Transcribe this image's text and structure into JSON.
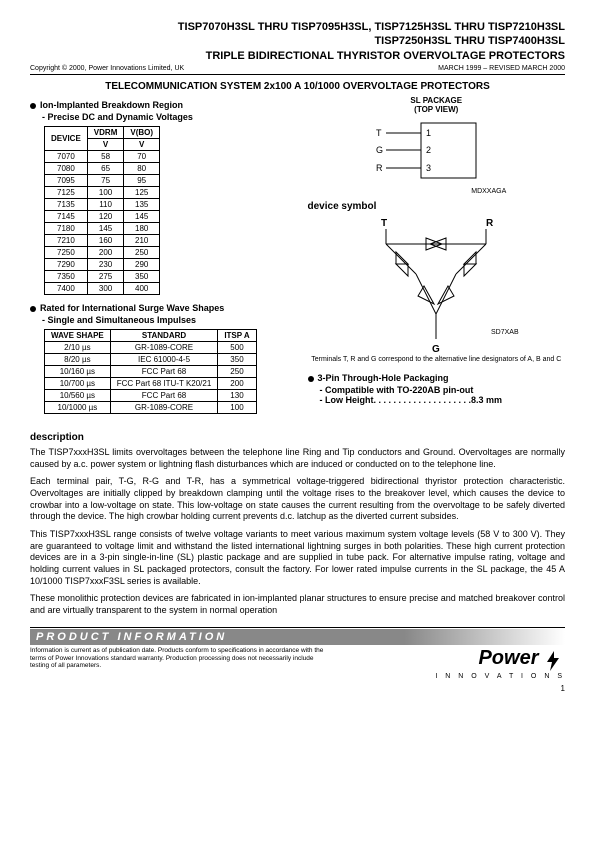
{
  "header": {
    "line1": "TISP7070H3SL THRU TISP7095H3SL, TISP7125H3SL THRU TISP7210H3SL",
    "line2": "TISP7250H3SL THRU TISP7400H3SL",
    "line3": "TRIPLE BIDIRECTIONAL THYRISTOR OVERVOLTAGE PROTECTORS",
    "copyright": "Copyright © 2000, Power Innovations Limited, UK",
    "date": "MARCH 1999 – REVISED MARCH 2000"
  },
  "section_title": "TELECOMMUNICATION SYSTEM 2x100 A 10/1000 OVERVOLTAGE PROTECTORS",
  "bullet1": {
    "title": "Ion-Implanted Breakdown Region",
    "sub": "- Precise DC and Dynamic Voltages"
  },
  "device_table": {
    "headers": [
      "DEVICE",
      "VDRM",
      "V(BO)"
    ],
    "unit_row": [
      "",
      "V",
      "V"
    ],
    "rows": [
      [
        "7070",
        "58",
        "70"
      ],
      [
        "7080",
        "65",
        "80"
      ],
      [
        "7095",
        "75",
        "95"
      ],
      [
        "7125",
        "100",
        "125"
      ],
      [
        "7135",
        "110",
        "135"
      ],
      [
        "7145",
        "120",
        "145"
      ],
      [
        "7180",
        "145",
        "180"
      ],
      [
        "7210",
        "160",
        "210"
      ],
      [
        "7250",
        "200",
        "250"
      ],
      [
        "7290",
        "230",
        "290"
      ],
      [
        "7350",
        "275",
        "350"
      ],
      [
        "7400",
        "300",
        "400"
      ]
    ]
  },
  "bullet2": {
    "title": "Rated for International Surge Wave Shapes",
    "sub": "- Single and Simultaneous Impulses"
  },
  "wave_table": {
    "headers": [
      "WAVE SHAPE",
      "STANDARD",
      "ITSP A"
    ],
    "rows": [
      [
        "2/10 µs",
        "GR-1089-CORE",
        "500"
      ],
      [
        "8/20 µs",
        "IEC 61000-4-5",
        "350"
      ],
      [
        "10/160 µs",
        "FCC Part 68",
        "250"
      ],
      [
        "10/700 µs",
        "FCC Part 68 ITU-T K20/21",
        "200"
      ],
      [
        "10/560 µs",
        "FCC Part 68",
        "130"
      ],
      [
        "10/1000 µs",
        "GR-1089-CORE",
        "100"
      ]
    ]
  },
  "package": {
    "title1": "SL PACKAGE",
    "title2": "(TOP VIEW)",
    "pins": {
      "T": "T",
      "G": "G",
      "R": "R"
    },
    "pin_nums": [
      "1",
      "2",
      "3"
    ],
    "code": "MDXXAGA"
  },
  "device_symbol": {
    "label": "device symbol",
    "T": "T",
    "R": "R",
    "G": "G",
    "code": "SD7XAB",
    "note": "Terminals T, R and G correspond to the alternative line designators of A, B and C"
  },
  "bullet3": {
    "title": "3-Pin Through-Hole Packaging",
    "line1": "- Compatible with TO-220AB pin-out",
    "line2_prefix": "- Low Height",
    "line2_suffix": "8.3 mm"
  },
  "description": {
    "head": "description",
    "p1": "The TISP7xxxH3SL limits overvoltages between the telephone line Ring and Tip conductors and Ground. Overvoltages are normally caused by a.c. power system or lightning flash disturbances which are induced or conducted on to the telephone line.",
    "p2": "Each terminal pair, T-G, R-G and T-R, has a symmetrical voltage-triggered bidirectional thyristor protection characteristic. Overvoltages are initially clipped by breakdown clamping until the voltage rises to the breakover level, which causes the device to crowbar into a low-voltage on state. This low-voltage on state causes the current resulting from the overvoltage to be safely diverted through the device. The high crowbar holding current prevents d.c. latchup as the diverted current subsides.",
    "p3": "This TISP7xxxH3SL range consists of twelve voltage variants to meet various maximum system voltage levels (58 V to 300 V). They are guaranteed to voltage limit and withstand the listed international lightning surges in both polarities. These high current protection devices are in a 3-pin single-in-line (SL) plastic package and are supplied in tube pack. For alternative impulse rating, voltage and holding current values in SL packaged protectors, consult the factory. For lower rated impulse currents in the SL package, the 45 A 10/1000 TISP7xxxF3SL series is available.",
    "p4": "These monolithic protection devices are fabricated in ion-implanted planar structures to ensure precise and matched breakover control and are virtually transparent to the system in normal operation"
  },
  "footer": {
    "bar": "PRODUCT   INFORMATION",
    "text": "Information is current as of publication date. Products conform to specifications in accordance with the terms of Power Innovations standard warranty. Production processing does not necessarily include testing of all parameters.",
    "logo_main": "Power",
    "logo_sub": "I N N O V A T I O N S",
    "page": "1"
  }
}
